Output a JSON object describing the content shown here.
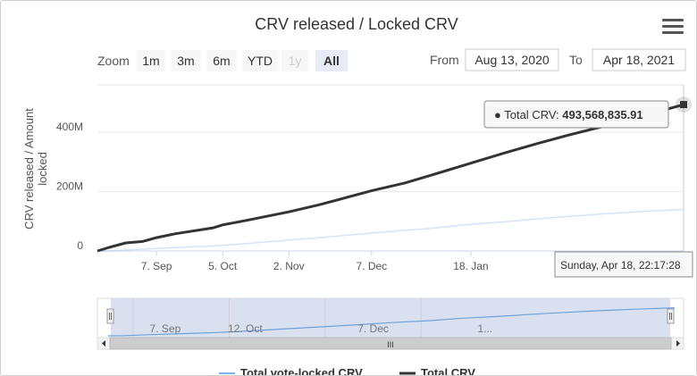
{
  "title": "CRV released / Locked CRV",
  "range_selector": {
    "zoom_label": "Zoom",
    "buttons": [
      {
        "label": "1m",
        "state": "normal"
      },
      {
        "label": "3m",
        "state": "normal"
      },
      {
        "label": "6m",
        "state": "normal"
      },
      {
        "label": "YTD",
        "state": "normal"
      },
      {
        "label": "1y",
        "state": "disabled"
      },
      {
        "label": "All",
        "state": "selected"
      }
    ],
    "from_label": "From",
    "from_value": "Aug 13, 2020",
    "to_label": "To",
    "to_value": "Apr 18, 2021"
  },
  "tooltip": {
    "series": "Total CRV",
    "value": "493,568,835.91",
    "date": "Sunday, Apr 18, 22:17:28"
  },
  "legend": [
    "Total vote-locked CRV",
    "Total CRV"
  ],
  "navigator": {
    "ticks": [
      "7. Sep",
      "12. Oct",
      "7. Dec",
      "1..."
    ],
    "scroll_grip": "III"
  },
  "colors": {
    "total_crv": "#333333",
    "vote_locked": "#7cb5ec",
    "navigator_mask": "#ccd6eb",
    "navigator_line": "#6fa2d8"
  },
  "chart_data": {
    "type": "line",
    "title": "CRV released / Locked CRV",
    "xlabel": "",
    "ylabel": "CRV released / Amount locked",
    "x_range": [
      "2020-08-13",
      "2021-04-18"
    ],
    "ylim": [
      0,
      560000000
    ],
    "y_ticks": [
      {
        "value": 0,
        "label": "0"
      },
      {
        "value": 200000000,
        "label": "200M"
      },
      {
        "value": 400000000,
        "label": "400M"
      }
    ],
    "x_ticks": [
      {
        "date": "2020-09-07",
        "label": "7. Sep"
      },
      {
        "date": "2020-10-05",
        "label": "5. Oct"
      },
      {
        "date": "2020-11-02",
        "label": "2. Nov"
      },
      {
        "date": "2020-12-07",
        "label": "7. Dec"
      },
      {
        "date": "2021-01-18",
        "label": "18. Jan"
      }
    ],
    "grid": true,
    "legend_position": "bottom",
    "series": [
      {
        "name": "Total vote-locked CRV",
        "points": [
          {
            "date": "2020-08-13",
            "value": 0
          },
          {
            "date": "2020-08-20",
            "value": 800000
          },
          {
            "date": "2020-09-01",
            "value": 6000000
          },
          {
            "date": "2020-09-15",
            "value": 11000000
          },
          {
            "date": "2020-10-01",
            "value": 17000000
          },
          {
            "date": "2020-10-15",
            "value": 25000000
          },
          {
            "date": "2020-11-01",
            "value": 36000000
          },
          {
            "date": "2020-11-15",
            "value": 45000000
          },
          {
            "date": "2020-12-01",
            "value": 56000000
          },
          {
            "date": "2020-12-15",
            "value": 66000000
          },
          {
            "date": "2021-01-01",
            "value": 76000000
          },
          {
            "date": "2021-01-15",
            "value": 88000000
          },
          {
            "date": "2021-02-01",
            "value": 98000000
          },
          {
            "date": "2021-02-15",
            "value": 108000000
          },
          {
            "date": "2021-03-01",
            "value": 117000000
          },
          {
            "date": "2021-03-15",
            "value": 125000000
          },
          {
            "date": "2021-04-01",
            "value": 133000000
          },
          {
            "date": "2021-04-18",
            "value": 140000000
          }
        ]
      },
      {
        "name": "Total CRV",
        "points": [
          {
            "date": "2020-08-13",
            "value": 0
          },
          {
            "date": "2020-08-18",
            "value": 12000000
          },
          {
            "date": "2020-08-25",
            "value": 27000000
          },
          {
            "date": "2020-09-01",
            "value": 32000000
          },
          {
            "date": "2020-09-07",
            "value": 45000000
          },
          {
            "date": "2020-09-15",
            "value": 58000000
          },
          {
            "date": "2020-10-01",
            "value": 78000000
          },
          {
            "date": "2020-10-05",
            "value": 88000000
          },
          {
            "date": "2020-10-15",
            "value": 103000000
          },
          {
            "date": "2020-11-02",
            "value": 132000000
          },
          {
            "date": "2020-11-15",
            "value": 156000000
          },
          {
            "date": "2020-12-07",
            "value": 203000000
          },
          {
            "date": "2020-12-21",
            "value": 229000000
          },
          {
            "date": "2021-01-01",
            "value": 255000000
          },
          {
            "date": "2021-01-18",
            "value": 296000000
          },
          {
            "date": "2021-02-01",
            "value": 330000000
          },
          {
            "date": "2021-02-15",
            "value": 362000000
          },
          {
            "date": "2021-03-01",
            "value": 392000000
          },
          {
            "date": "2021-03-15",
            "value": 420000000
          },
          {
            "date": "2021-04-01",
            "value": 456000000
          },
          {
            "date": "2021-04-18",
            "value": 493568835.91
          }
        ]
      }
    ]
  }
}
